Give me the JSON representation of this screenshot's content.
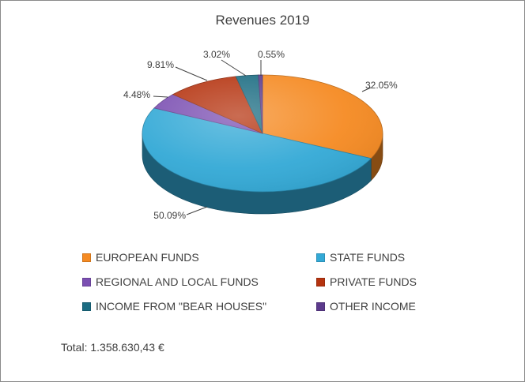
{
  "chart_data": {
    "type": "pie",
    "title": "Revenues 2019",
    "slices": [
      {
        "name": "EUROPEAN FUNDS",
        "value": 32.05,
        "label": "32.05%",
        "color": "#F58A22"
      },
      {
        "name": "STATE FUNDS",
        "value": 50.09,
        "label": "50.09%",
        "color": "#33A9D6"
      },
      {
        "name": "REGIONAL AND LOCAL FUNDS",
        "value": 4.48,
        "label": "4.48%",
        "color": "#7B4FB2"
      },
      {
        "name": "PRIVATE FUNDS",
        "value": 9.81,
        "label": "9.81%",
        "color": "#B5330F"
      },
      {
        "name": "INCOME FROM \"BEAR HOUSES\"",
        "value": 3.02,
        "label": "3.02%",
        "color": "#1B6C82"
      },
      {
        "name": "OTHER INCOME",
        "value": 0.55,
        "label": "0.55%",
        "color": "#5C3A8C"
      }
    ],
    "legend_position": "bottom",
    "total": "Total: 1.358.630,43 €"
  }
}
